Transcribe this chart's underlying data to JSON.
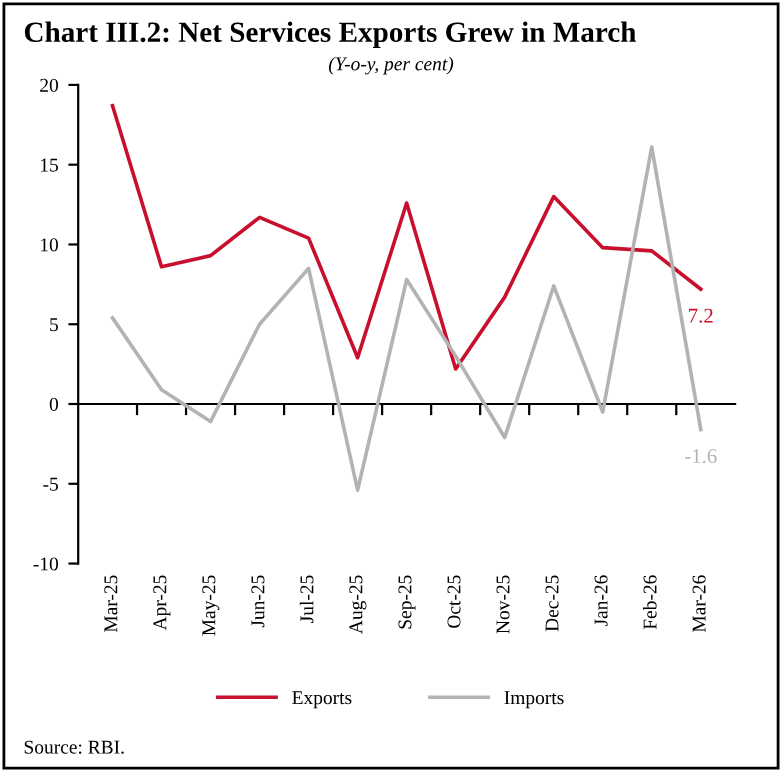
{
  "chart_data": {
    "type": "line",
    "title": "Chart III.2: Net Services Exports Grew in March",
    "subtitle": "(Y-o-y, per cent)",
    "categories": [
      "Mar-25",
      "Apr-25",
      "May-25",
      "Jun-25",
      "Jul-25",
      "Aug-25",
      "Sep-25",
      "Oct-25",
      "Nov-25",
      "Dec-25",
      "Jan-26",
      "Feb-26",
      "Mar-26"
    ],
    "series": [
      {
        "name": "Exports",
        "color": "#c8102e",
        "values": [
          18.7,
          8.6,
          9.3,
          11.7,
          10.4,
          2.9,
          12.6,
          2.2,
          6.7,
          13.0,
          9.8,
          9.6,
          7.2
        ],
        "value_labels": [
          null,
          null,
          null,
          null,
          null,
          null,
          null,
          null,
          null,
          null,
          null,
          null,
          "7.2"
        ]
      },
      {
        "name": "Imports",
        "color": "#b3b3b3",
        "values": [
          5.4,
          0.9,
          -1.1,
          5.0,
          8.5,
          -5.4,
          7.8,
          3.0,
          -2.1,
          7.4,
          -0.5,
          16.1,
          -1.6
        ],
        "value_labels": [
          null,
          null,
          null,
          null,
          null,
          null,
          null,
          null,
          null,
          null,
          null,
          null,
          "-1.6"
        ]
      }
    ],
    "ylim": [
      -10,
      20
    ],
    "yticks": [
      -10,
      -5,
      0,
      5,
      10,
      15,
      20
    ],
    "legend": "bottom",
    "marker": "none",
    "line_style": "solid",
    "annotations": [
      "Source: RBI."
    ]
  }
}
